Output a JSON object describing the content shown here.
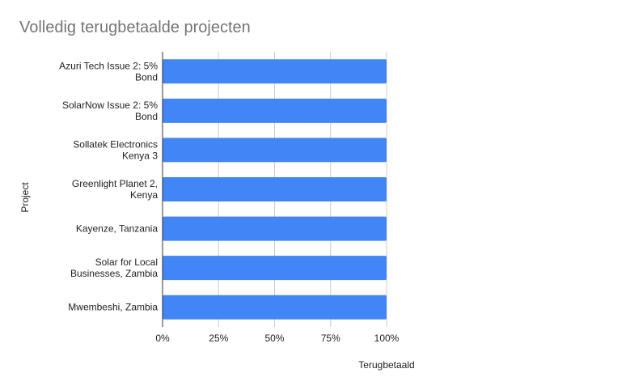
{
  "chart_data": {
    "type": "bar",
    "orientation": "horizontal",
    "title": "Volledig terugbetaalde projecten",
    "xlabel": "Terugbetaald",
    "ylabel": "Project",
    "xlim": [
      0,
      100
    ],
    "x_ticks": [
      "0%",
      "25%",
      "50%",
      "75%",
      "100%"
    ],
    "x_tick_values": [
      0,
      25,
      50,
      75,
      100
    ],
    "grid": true,
    "categories": [
      [
        "Azuri Tech Issue 2: 5%",
        "Bond"
      ],
      [
        "SolarNow Issue 2: 5%",
        "Bond"
      ],
      [
        "Sollatek Electronics",
        "Kenya 3"
      ],
      [
        "Greenlight Planet 2,",
        "Kenya"
      ],
      [
        "Kayenze, Tanzania"
      ],
      [
        "Solar for Local",
        "Businesses, Zambia"
      ],
      [
        "Mwembeshi, Zambia"
      ]
    ],
    "values": [
      100,
      100,
      100,
      100,
      100,
      100,
      100
    ],
    "bar_color": "#4285f4",
    "grid_color": "#cccccc",
    "axis_color": "#333333"
  }
}
